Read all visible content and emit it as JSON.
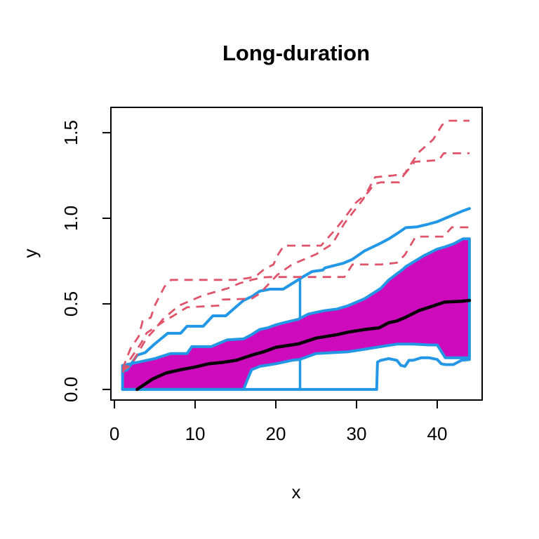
{
  "chart_data": {
    "type": "line",
    "title": "Long-duration",
    "xlabel": "x",
    "ylabel": "y",
    "xlim": [
      -0.44,
      45.57
    ],
    "ylim": [
      -0.062,
      1.648
    ],
    "grid": false,
    "legend": "none",
    "box_color": "#000000",
    "background": "#ffffff",
    "xticks": {
      "values": [
        0,
        10,
        20,
        30,
        40
      ],
      "labels": [
        "0",
        "10",
        "20",
        "30",
        "40"
      ]
    },
    "yticks": {
      "values": [
        0,
        0.5,
        1.0,
        1.5
      ],
      "labels": [
        "0.0",
        "0.5",
        "1.0",
        "1.5"
      ]
    },
    "colors": {
      "envelope_blue": "#2297E6",
      "band_magenta": "#CD0BBC",
      "dashed_red": "#DF536B",
      "median_black": "#000000"
    },
    "band": {
      "name": "confidence-band",
      "fill": "#CD0BBC",
      "stroke": "#2297E6",
      "width": 4,
      "upper": [
        [
          1,
          0.14
        ],
        [
          2,
          0.15
        ],
        [
          3,
          0.16
        ],
        [
          4,
          0.17
        ],
        [
          5,
          0.18
        ],
        [
          6,
          0.195
        ],
        [
          7,
          0.21
        ],
        [
          9,
          0.21
        ],
        [
          9.6,
          0.25
        ],
        [
          12,
          0.25
        ],
        [
          13,
          0.27
        ],
        [
          14,
          0.29
        ],
        [
          16,
          0.295
        ],
        [
          17,
          0.32
        ],
        [
          18,
          0.35
        ],
        [
          19,
          0.36
        ],
        [
          20,
          0.377
        ],
        [
          21,
          0.39
        ],
        [
          22.8,
          0.41
        ],
        [
          24,
          0.44
        ],
        [
          25,
          0.45
        ],
        [
          26,
          0.46
        ],
        [
          27.6,
          0.47
        ],
        [
          29,
          0.49
        ],
        [
          31,
          0.53
        ],
        [
          33,
          0.59
        ],
        [
          34,
          0.64
        ],
        [
          35.7,
          0.7
        ],
        [
          36.1,
          0.717
        ],
        [
          38.3,
          0.78
        ],
        [
          40,
          0.82
        ],
        [
          40.9,
          0.832
        ],
        [
          42,
          0.85
        ],
        [
          43.2,
          0.88
        ],
        [
          44,
          0.88
        ]
      ],
      "lower": [
        [
          1,
          0
        ],
        [
          16,
          0
        ],
        [
          16.5,
          0.06
        ],
        [
          17,
          0.115
        ],
        [
          18,
          0.135
        ],
        [
          20,
          0.15
        ],
        [
          22,
          0.17
        ],
        [
          23,
          0.176
        ],
        [
          25,
          0.21
        ],
        [
          27,
          0.215
        ],
        [
          29,
          0.22
        ],
        [
          31,
          0.235
        ],
        [
          33,
          0.25
        ],
        [
          35,
          0.265
        ],
        [
          37,
          0.265
        ],
        [
          39,
          0.26
        ],
        [
          40,
          0.26
        ],
        [
          41,
          0.185
        ],
        [
          43,
          0.185
        ],
        [
          44,
          0.185
        ]
      ]
    },
    "series": [
      {
        "name": "vertical-marker-x23",
        "color": "#2297E6",
        "width": 3.5,
        "dash": false,
        "points": [
          [
            23,
            0
          ],
          [
            23,
            0.648
          ]
        ]
      },
      {
        "name": "band-placeholder",
        "role": "band",
        "color": "#CD0BBC",
        "width": 4,
        "dash": false,
        "points": []
      },
      {
        "name": "upper-envelope",
        "color": "#2297E6",
        "width": 4,
        "dash": false,
        "points": [
          [
            1,
            0.105
          ],
          [
            1.6,
            0.115
          ],
          [
            2.8,
            0.2
          ],
          [
            3.8,
            0.215
          ],
          [
            5,
            0.266
          ],
          [
            6.6,
            0.328
          ],
          [
            8.2,
            0.328
          ],
          [
            9,
            0.369
          ],
          [
            11,
            0.369
          ],
          [
            12.2,
            0.43
          ],
          [
            13.8,
            0.43
          ],
          [
            15.1,
            0.484
          ],
          [
            16,
            0.52
          ],
          [
            17.1,
            0.545
          ],
          [
            18,
            0.574
          ],
          [
            19.3,
            0.586
          ],
          [
            20.9,
            0.586
          ],
          [
            22.6,
            0.635
          ],
          [
            23,
            0.648
          ],
          [
            24.5,
            0.689
          ],
          [
            25.8,
            0.697
          ],
          [
            26.1,
            0.71
          ],
          [
            28.4,
            0.738
          ],
          [
            29.5,
            0.76
          ],
          [
            31,
            0.81
          ],
          [
            32.8,
            0.85
          ],
          [
            34,
            0.88
          ],
          [
            35,
            0.91
          ],
          [
            36.1,
            0.945
          ],
          [
            37.5,
            0.95
          ],
          [
            38.7,
            0.963
          ],
          [
            40,
            0.98
          ],
          [
            41,
            1.0
          ],
          [
            42,
            1.02
          ],
          [
            43,
            1.04
          ],
          [
            44,
            1.057
          ]
        ]
      },
      {
        "name": "lower-envelope",
        "color": "#2297E6",
        "width": 4,
        "dash": false,
        "points": [
          [
            1,
            0
          ],
          [
            32.5,
            0
          ],
          [
            32.6,
            0.16
          ],
          [
            33,
            0.17
          ],
          [
            34,
            0.18
          ],
          [
            35,
            0.17
          ],
          [
            35.5,
            0.14
          ],
          [
            36,
            0.135
          ],
          [
            36.5,
            0.17
          ],
          [
            37,
            0.17
          ],
          [
            38,
            0.185
          ],
          [
            39,
            0.185
          ],
          [
            40,
            0.175
          ],
          [
            40.5,
            0.15
          ],
          [
            41,
            0.145
          ],
          [
            42,
            0.145
          ],
          [
            43,
            0.17
          ],
          [
            44,
            0.175
          ]
        ]
      },
      {
        "name": "dashed-curve-upper",
        "color": "#DF536B",
        "width": 2.8,
        "dash": true,
        "points": [
          [
            1,
            0.12
          ],
          [
            2,
            0.24
          ],
          [
            3,
            0.31
          ],
          [
            3.5,
            0.4
          ],
          [
            4.5,
            0.42
          ],
          [
            5,
            0.49
          ],
          [
            6.2,
            0.6
          ],
          [
            7,
            0.64
          ],
          [
            14.8,
            0.64
          ],
          [
            16.5,
            0.65
          ],
          [
            17.5,
            0.66
          ],
          [
            18.5,
            0.7
          ],
          [
            19.7,
            0.73
          ],
          [
            20.3,
            0.79
          ],
          [
            21,
            0.84
          ],
          [
            25.6,
            0.84
          ],
          [
            27.3,
            0.93
          ],
          [
            28.5,
            1.0
          ],
          [
            29.9,
            1.09
          ],
          [
            31.4,
            1.15
          ],
          [
            32.2,
            1.2
          ],
          [
            33,
            1.21
          ],
          [
            35.3,
            1.21
          ],
          [
            36.5,
            1.3
          ],
          [
            37.7,
            1.385
          ],
          [
            39.5,
            1.46
          ],
          [
            40.6,
            1.545
          ],
          [
            41.3,
            1.57
          ],
          [
            44,
            1.57
          ]
        ]
      },
      {
        "name": "dashed-curve-middle",
        "color": "#DF536B",
        "width": 2.8,
        "dash": true,
        "points": [
          [
            1,
            0.1
          ],
          [
            2,
            0.18
          ],
          [
            3.3,
            0.27
          ],
          [
            4,
            0.33
          ],
          [
            6.2,
            0.4
          ],
          [
            7.3,
            0.43
          ],
          [
            9,
            0.48
          ],
          [
            13,
            0.49
          ],
          [
            13.4,
            0.525
          ],
          [
            17,
            0.53
          ],
          [
            18,
            0.56
          ],
          [
            20.2,
            0.67
          ],
          [
            22,
            0.73
          ],
          [
            25,
            0.79
          ],
          [
            27,
            0.85
          ],
          [
            28.5,
            0.97
          ],
          [
            30.8,
            1.11
          ],
          [
            32.3,
            1.24
          ],
          [
            34.5,
            1.25
          ],
          [
            36,
            1.26
          ],
          [
            37.2,
            1.33
          ],
          [
            40.2,
            1.34
          ],
          [
            40.8,
            1.38
          ],
          [
            44,
            1.38
          ]
        ]
      },
      {
        "name": "dashed-curve-lower",
        "color": "#DF536B",
        "width": 2.8,
        "dash": true,
        "points": [
          [
            1,
            0.11
          ],
          [
            2,
            0.14
          ],
          [
            3,
            0.22
          ],
          [
            4,
            0.3
          ],
          [
            5,
            0.35
          ],
          [
            6,
            0.41
          ],
          [
            7,
            0.45
          ],
          [
            8,
            0.49
          ],
          [
            9.5,
            0.52
          ],
          [
            11,
            0.55
          ],
          [
            12.5,
            0.57
          ],
          [
            14,
            0.59
          ],
          [
            15.5,
            0.62
          ],
          [
            17,
            0.64
          ],
          [
            18.5,
            0.655
          ],
          [
            19.3,
            0.657
          ],
          [
            28.5,
            0.657
          ],
          [
            29.5,
            0.73
          ],
          [
            33,
            0.73
          ],
          [
            35,
            0.74
          ],
          [
            36,
            0.787
          ],
          [
            37.3,
            0.89
          ],
          [
            38,
            0.893
          ],
          [
            40.9,
            0.893
          ],
          [
            41.3,
            0.92
          ],
          [
            41.8,
            0.947
          ],
          [
            44,
            0.947
          ]
        ]
      },
      {
        "name": "median-curve",
        "color": "#000000",
        "width": 4.5,
        "dash": false,
        "points": [
          [
            2.8,
            0
          ],
          [
            4.7,
            0.06
          ],
          [
            6.4,
            0.096
          ],
          [
            8.2,
            0.115
          ],
          [
            9.9,
            0.13
          ],
          [
            11.7,
            0.15
          ],
          [
            13.4,
            0.158
          ],
          [
            15.1,
            0.17
          ],
          [
            17,
            0.2
          ],
          [
            18.5,
            0.22
          ],
          [
            20,
            0.246
          ],
          [
            22.8,
            0.266
          ],
          [
            25,
            0.3
          ],
          [
            27.6,
            0.32
          ],
          [
            29,
            0.335
          ],
          [
            31,
            0.35
          ],
          [
            32.8,
            0.36
          ],
          [
            34,
            0.39
          ],
          [
            35,
            0.4
          ],
          [
            36,
            0.42
          ],
          [
            37.7,
            0.46
          ],
          [
            39,
            0.48
          ],
          [
            40.9,
            0.51
          ],
          [
            43,
            0.515
          ],
          [
            44,
            0.52
          ]
        ]
      }
    ]
  }
}
